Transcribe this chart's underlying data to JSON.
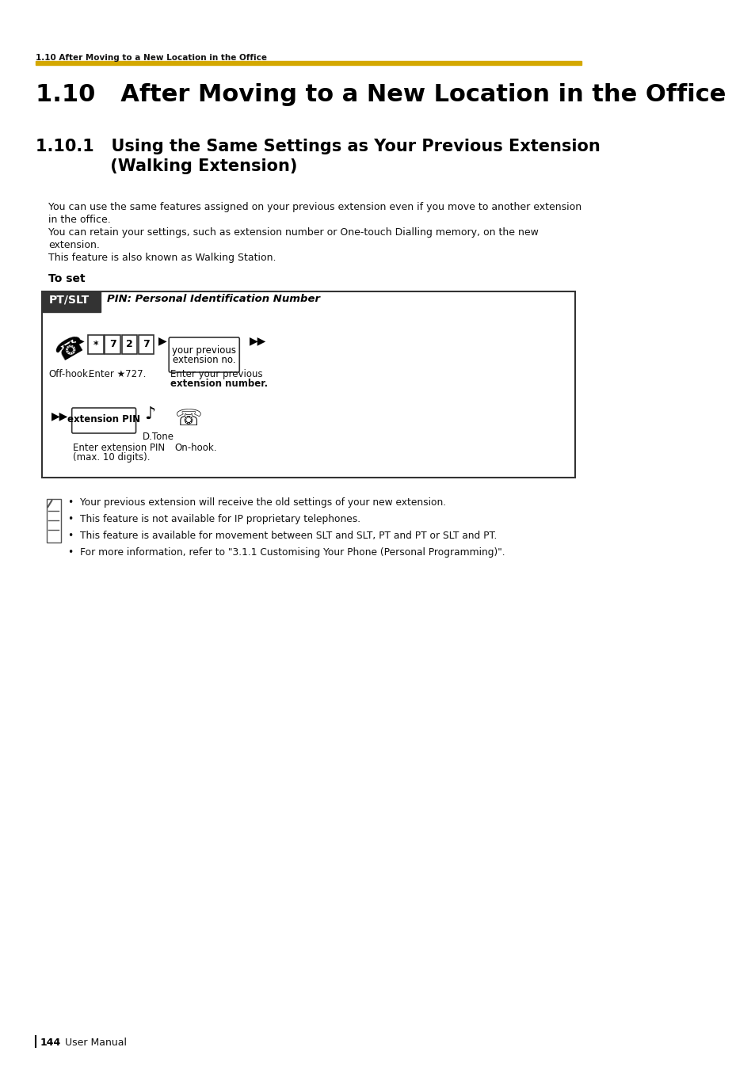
{
  "page_bg": "#ffffff",
  "breadcrumb": "1.10 After Moving to a New Location in the Office",
  "gold_line_color": "#D4A800",
  "main_title": "1.10   After Moving to a New Location in the Office",
  "section_title_line1": "1.10.1   Using the Same Settings as Your Previous Extension",
  "section_title_line2": "             (Walking Extension)",
  "body_text": [
    "You can use the same features assigned on your previous extension even if you move to another extension",
    "in the office.",
    "You can retain your settings, such as extension number or One-touch Dialling memory, on the new",
    "extension.",
    "This feature is also known as Walking Station."
  ],
  "to_set_label": "To set",
  "box_bg": "#ffffff",
  "box_border": "#333333",
  "pt_slt_bg": "#333333",
  "pt_slt_text": "PT/SLT",
  "pt_slt_subtitle": "PIN: Personal Identification Number",
  "label_off_hook": "Off-hook.",
  "label_enter_727": "Enter ★727.",
  "label_enter_prev_ext1": "Enter your previous",
  "label_enter_prev_ext2": "extension number.",
  "label_ext_pin1": "Enter extension PIN",
  "label_ext_pin2": "(max. 10 digits).",
  "label_dtone": "D.Tone",
  "label_on_hook": "On-hook.",
  "box_label_prev_ext_no1": "your previous",
  "box_label_prev_ext_no2": "extension no.",
  "box_label_ext_pin": "extension PIN",
  "bullets": [
    "Your previous extension will receive the old settings of your new extension.",
    "This feature is not available for IP proprietary telephones.",
    "This feature is available for movement between SLT and SLT, PT and PT or SLT and PT.",
    "For more information, refer to \"3.1.1 Customising Your Phone (Personal Programming)\"."
  ],
  "page_number": "144",
  "page_label": "User Manual"
}
